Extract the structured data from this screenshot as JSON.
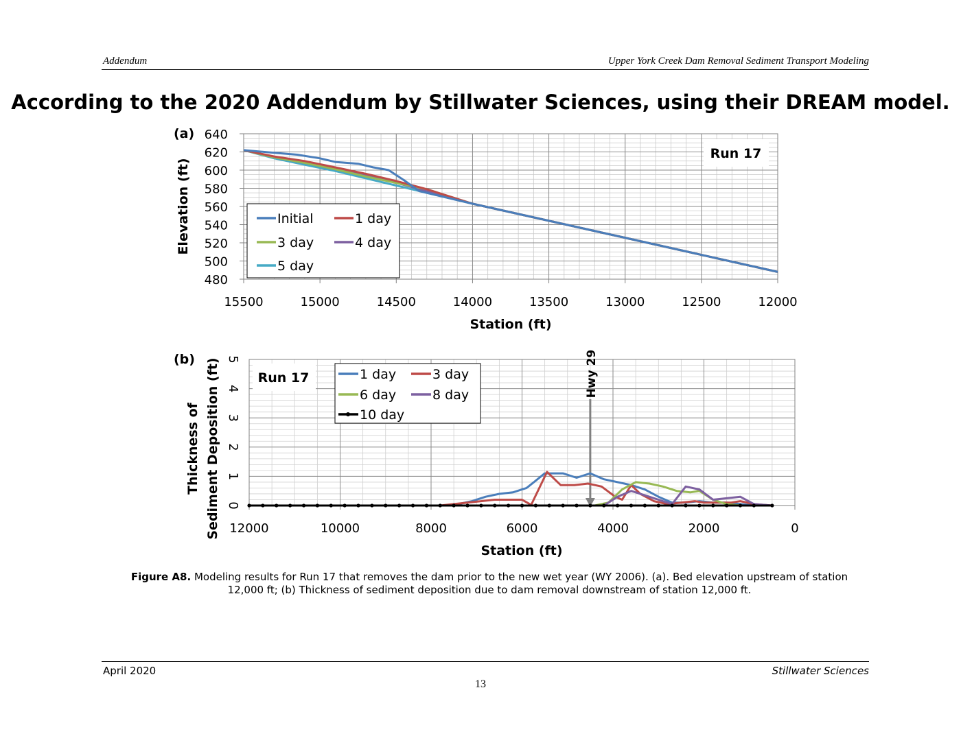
{
  "header": {
    "left": "Addendum",
    "right": "Upper York Creek Dam Removal Sediment Transport Modeling"
  },
  "banner": "According to the 2020 Addendum by Stillwater Sciences, using their DREAM model.",
  "caption": {
    "label": "Figure A8.",
    "text": "Modeling results for Run 17 that removes the dam prior to the new wet year (WY 2006).  (a). Bed elevation upstream of station 12,000 ft; (b) Thickness of sediment deposition due to dam removal downstream of station 12,000 ft."
  },
  "footer": {
    "left": "April 2020",
    "right": "Stillwater Sciences",
    "page": "13"
  },
  "chart_data": [
    {
      "panel": "(a)",
      "type": "line",
      "annotation": "Run 17",
      "xlabel": "Station (ft)",
      "ylabel": "Elevation (ft)",
      "xlim": [
        15500,
        12000
      ],
      "ylim": [
        480,
        640
      ],
      "xticks": [
        15500,
        15000,
        14500,
        14000,
        13500,
        13000,
        12500,
        12000
      ],
      "yticks": [
        480,
        500,
        520,
        540,
        560,
        580,
        600,
        620,
        640
      ],
      "grid": true,
      "legend": "lower-left",
      "series": [
        {
          "name": "Initial",
          "color": "#4a7ebb",
          "x": [
            15500,
            15300,
            15150,
            15000,
            14900,
            14750,
            14650,
            14550,
            14450,
            14350,
            14000,
            12000
          ],
          "y": [
            622,
            619,
            617,
            613,
            609,
            607,
            603,
            600,
            589,
            577,
            563,
            488
          ]
        },
        {
          "name": "1 day",
          "color": "#be4b48",
          "x": [
            15500,
            15300,
            15100,
            14900,
            14700,
            14500,
            14300,
            14000,
            12000
          ],
          "y": [
            622,
            615,
            610,
            603,
            596,
            588,
            579,
            563,
            488
          ]
        },
        {
          "name": "3 day",
          "color": "#98b954",
          "x": [
            15500,
            15300,
            15100,
            14900,
            14700,
            14500,
            14300,
            14000,
            12000
          ],
          "y": [
            622,
            614,
            608,
            601,
            593,
            586,
            579,
            563,
            488
          ]
        },
        {
          "name": "4 day",
          "color": "#7d60a0",
          "x": [
            15500,
            15300,
            15100,
            14900,
            14700,
            14500,
            14300,
            14000,
            12000
          ],
          "y": [
            622,
            614,
            608,
            601,
            594,
            586,
            577,
            563,
            488
          ]
        },
        {
          "name": "5 day",
          "color": "#46aac5",
          "x": [
            15500,
            15300,
            15100,
            14900,
            14700,
            14500,
            14300,
            14000,
            12000
          ],
          "y": [
            622,
            613,
            606,
            599,
            591,
            583,
            575,
            563,
            488
          ]
        }
      ]
    },
    {
      "panel": "(b)",
      "type": "line",
      "annotation": "Run 17",
      "marker_label": "Hwy 29",
      "marker_x": 4500,
      "xlabel": "Station (ft)",
      "ylabel": "Thickness of Sediment Deposition (ft)",
      "ylabel_lines": [
        "Thickness of",
        "Sediment Deposition (ft)"
      ],
      "xlim": [
        12000,
        0
      ],
      "ylim": [
        0,
        5
      ],
      "xticks": [
        12000,
        10000,
        8000,
        6000,
        4000,
        2000,
        0
      ],
      "yticks": [
        0,
        1,
        2,
        3,
        4,
        5
      ],
      "grid": true,
      "legend": "top-center",
      "series": [
        {
          "name": "1 day",
          "color": "#4a7ebb",
          "x": [
            12000,
            7700,
            7400,
            7100,
            6800,
            6500,
            6200,
            5900,
            5700,
            5500,
            5300,
            5100,
            4800,
            4500,
            4200,
            3900,
            3600,
            3300,
            3000,
            2700,
            2400,
            2100,
            1800,
            1500,
            1200,
            900,
            500
          ],
          "y": [
            0,
            0,
            0.05,
            0.15,
            0.3,
            0.4,
            0.45,
            0.6,
            0.85,
            1.1,
            1.1,
            1.1,
            0.95,
            1.1,
            0.9,
            0.8,
            0.7,
            0.55,
            0.3,
            0.1,
            0.1,
            0.15,
            0.1,
            0.1,
            0.05,
            0,
            0
          ]
        },
        {
          "name": "3 day",
          "color": "#be4b48",
          "x": [
            12000,
            7800,
            7500,
            7200,
            6900,
            6600,
            6300,
            6000,
            5800,
            5450,
            5150,
            4850,
            4550,
            4250,
            3950,
            3800,
            3600,
            3400,
            3100,
            2800,
            2500,
            2200,
            2000,
            1700,
            1400,
            1200,
            900,
            500
          ],
          "y": [
            0,
            0,
            0.05,
            0.1,
            0.15,
            0.2,
            0.2,
            0.2,
            0.02,
            1.15,
            0.7,
            0.7,
            0.75,
            0.65,
            0.3,
            0.2,
            0.7,
            0.4,
            0.15,
            0.05,
            0.1,
            0.15,
            0.1,
            0.1,
            0.1,
            0.15,
            0.05,
            0
          ]
        },
        {
          "name": "6 day",
          "color": "#98b954",
          "x": [
            12000,
            4400,
            4100,
            3800,
            3500,
            3200,
            2900,
            2600,
            2300,
            2100,
            1800,
            1500,
            1200,
            900,
            500
          ],
          "y": [
            0,
            0,
            0.1,
            0.55,
            0.8,
            0.75,
            0.65,
            0.5,
            0.45,
            0.5,
            0.2,
            0.05,
            0,
            0,
            0
          ]
        },
        {
          "name": "8 day",
          "color": "#7d60a0",
          "x": [
            12000,
            4200,
            3900,
            3600,
            3300,
            3000,
            2700,
            2400,
            2100,
            1800,
            1500,
            1200,
            900,
            500
          ],
          "y": [
            0,
            0,
            0.3,
            0.5,
            0.35,
            0.2,
            0.05,
            0.65,
            0.55,
            0.2,
            0.25,
            0.3,
            0.05,
            0
          ]
        },
        {
          "name": "10 day",
          "color": "#000000",
          "x": [
            12000,
            11700,
            11400,
            11100,
            10800,
            10500,
            10200,
            9900,
            9600,
            9300,
            9000,
            8700,
            8400,
            8100,
            7800,
            7500,
            7200,
            6900,
            6600,
            6300,
            6000,
            5700,
            5400,
            5100,
            4800,
            4500,
            4200,
            3900,
            3600,
            3300,
            3000,
            2700,
            2400,
            2100,
            1800,
            1500,
            1200,
            900,
            500
          ],
          "y": [
            0,
            0,
            0,
            0,
            0,
            0,
            0,
            0,
            0,
            0,
            0,
            0,
            0,
            0,
            0,
            0,
            0,
            0,
            0,
            0,
            0,
            0,
            0,
            0,
            0,
            0,
            0,
            0,
            0,
            0,
            0,
            0,
            0,
            0,
            0,
            0,
            0,
            0,
            0
          ],
          "markers": true
        }
      ]
    }
  ]
}
